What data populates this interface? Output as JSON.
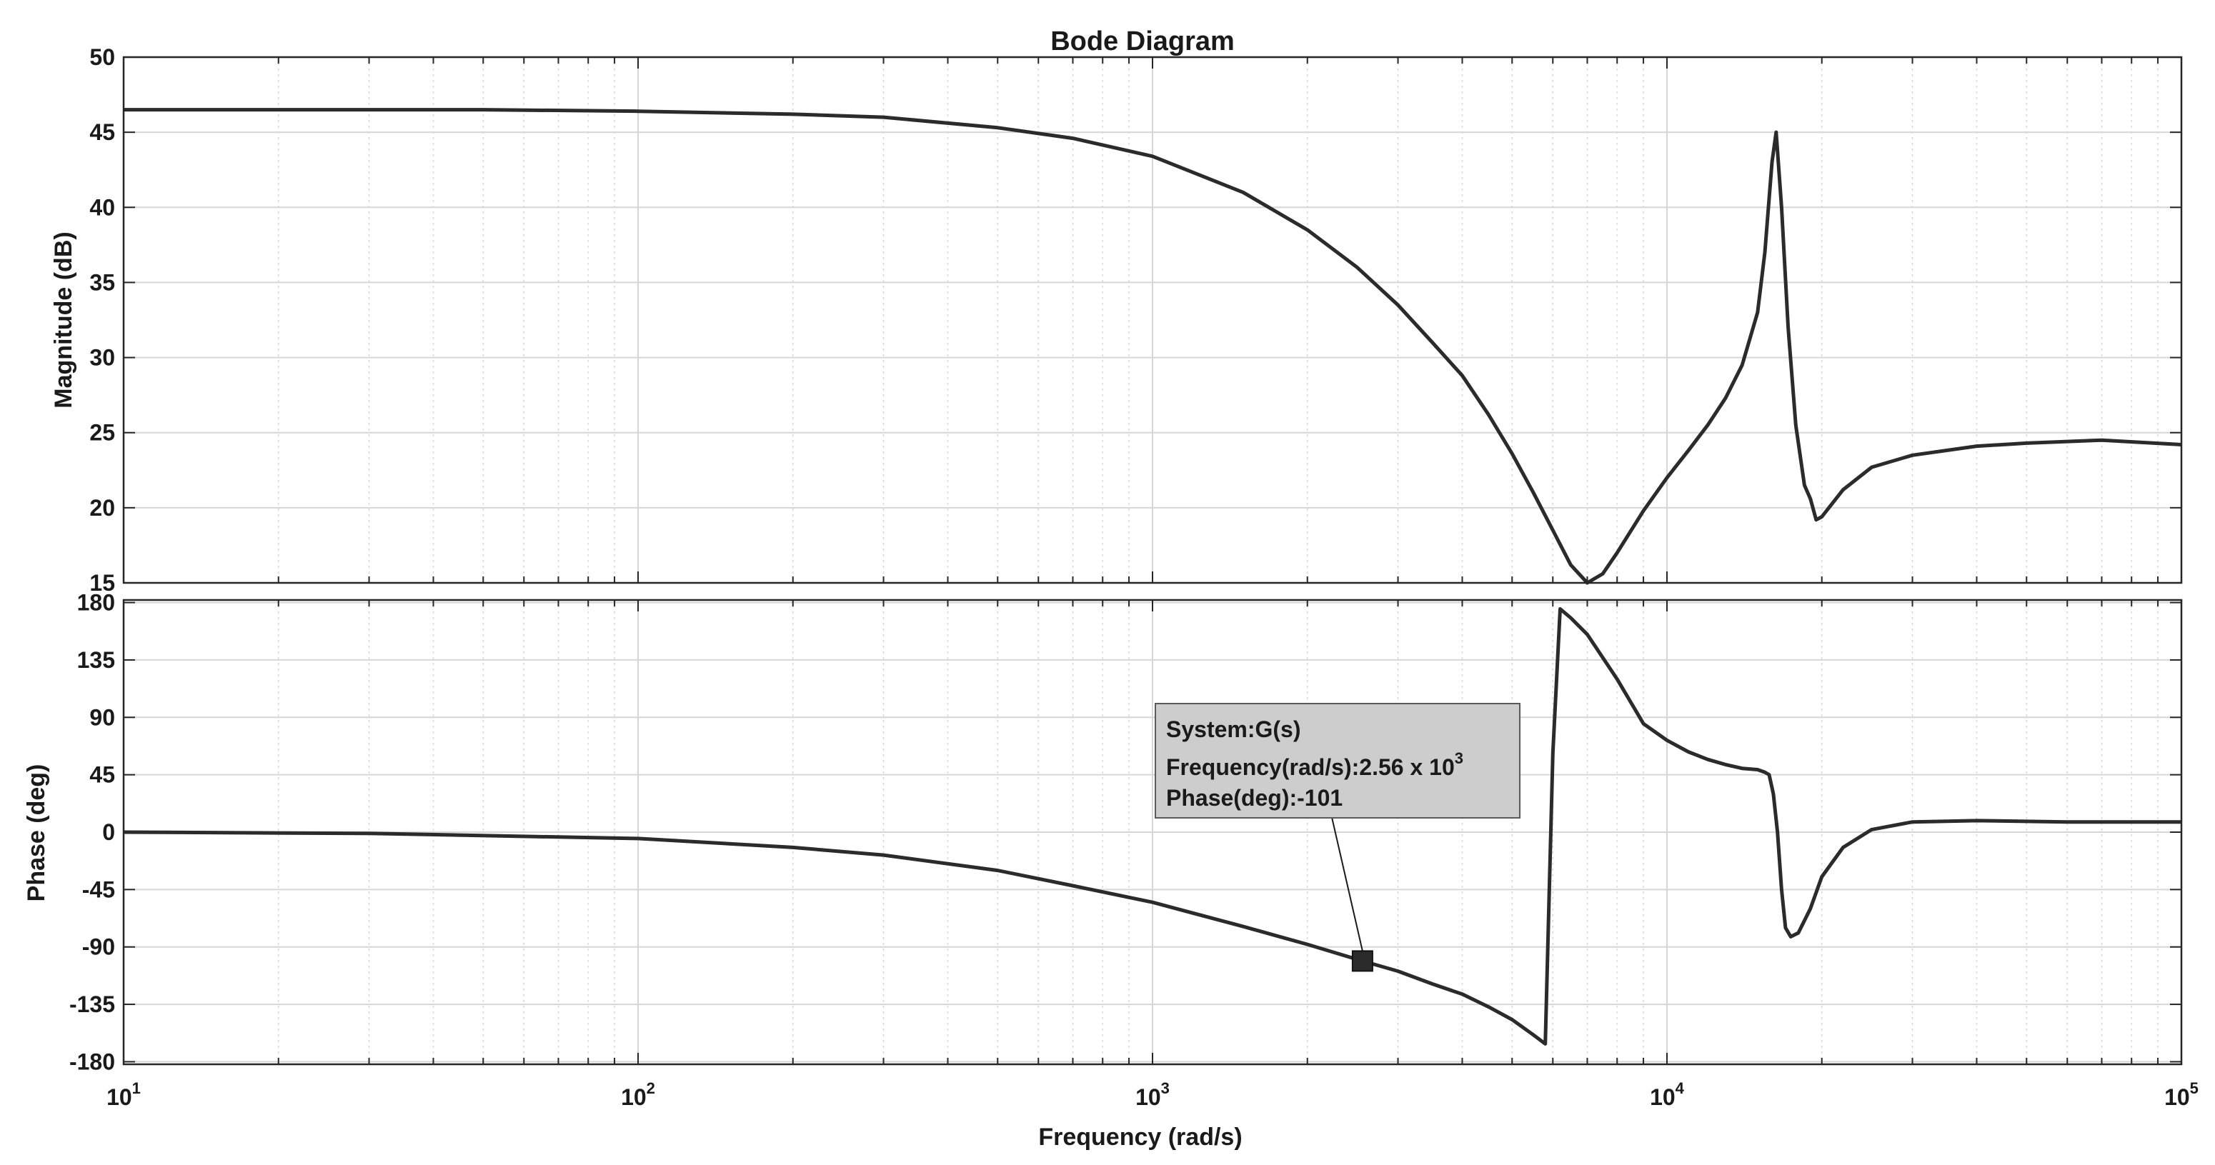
{
  "chart_data": {
    "type": "line",
    "title": "Bode Diagram",
    "xlabel": "Frequency  (rad/s)",
    "x_scale": "log",
    "xlim": [
      10,
      100000
    ],
    "x_ticks": [
      {
        "value": 10,
        "base": "10",
        "exp": "1"
      },
      {
        "value": 100,
        "base": "10",
        "exp": "2"
      },
      {
        "value": 1000,
        "base": "10",
        "exp": "3"
      },
      {
        "value": 10000,
        "base": "10",
        "exp": "4"
      },
      {
        "value": 100000,
        "base": "10",
        "exp": "5"
      }
    ],
    "grid": true,
    "line_color": "#2b2b2b",
    "magnitude": {
      "ylabel": "Magnitude (dB)",
      "ylim": [
        15,
        50
      ],
      "y_ticks": [
        "15",
        "20",
        "25",
        "30",
        "35",
        "40",
        "45",
        "50"
      ],
      "x": [
        10,
        50,
        100,
        200,
        300,
        500,
        700,
        1000,
        1500,
        2000,
        2500,
        3000,
        3500,
        4000,
        4500,
        5000,
        5500,
        6000,
        6500,
        7000,
        7500,
        8000,
        9000,
        10000,
        11000,
        12000,
        13000,
        14000,
        15000,
        15500,
        16000,
        16300,
        16700,
        17200,
        17800,
        18500,
        19000,
        19500,
        20000,
        22000,
        25000,
        30000,
        40000,
        50000,
        70000,
        100000
      ],
      "y": [
        46.5,
        46.5,
        46.4,
        46.2,
        46.0,
        45.3,
        44.6,
        43.4,
        41.0,
        38.5,
        36.0,
        33.5,
        31.0,
        28.8,
        26.2,
        23.6,
        21.0,
        18.5,
        16.2,
        15.0,
        15.6,
        17.0,
        19.8,
        22.0,
        23.8,
        25.5,
        27.3,
        29.5,
        33.0,
        37.0,
        43.0,
        45.0,
        40.0,
        32.0,
        25.5,
        21.5,
        20.6,
        19.2,
        19.4,
        21.2,
        22.7,
        23.5,
        24.1,
        24.3,
        24.5,
        24.2
      ]
    },
    "phase": {
      "ylabel": "Phase (deg)",
      "ylim": [
        -182,
        182
      ],
      "y_ticks": [
        "-180",
        "-135",
        "-90",
        "-45",
        "0",
        "45",
        "90",
        "135",
        "180"
      ],
      "x": [
        10,
        30,
        100,
        200,
        300,
        500,
        700,
        1000,
        1500,
        2000,
        2560,
        3000,
        3500,
        4000,
        4500,
        5000,
        5500,
        5800,
        6000,
        6200,
        6500,
        7000,
        8000,
        9000,
        10000,
        11000,
        12000,
        13000,
        14000,
        15000,
        15500,
        15800,
        16100,
        16400,
        16700,
        17000,
        17400,
        18000,
        19000,
        20000,
        22000,
        25000,
        30000,
        40000,
        60000,
        100000
      ],
      "y": [
        0,
        -1,
        -5,
        -12,
        -18,
        -30,
        -42,
        -55,
        -74,
        -88,
        -101,
        -109,
        -119,
        -127,
        -137,
        -147,
        -159,
        -166,
        62,
        175,
        168,
        155,
        120,
        85,
        72,
        63,
        57,
        53,
        50,
        49,
        47,
        45,
        30,
        0,
        -45,
        -75,
        -82,
        -79,
        -60,
        -35,
        -12,
        2,
        8,
        9,
        8,
        8
      ]
    },
    "datatip": {
      "system": "System:G(s)",
      "frequency_label": "Frequency(rad/s):2.56 x 10",
      "frequency_exp": "3",
      "phase_label": "Phase(deg):-101",
      "x": 2560,
      "y": -101
    }
  }
}
